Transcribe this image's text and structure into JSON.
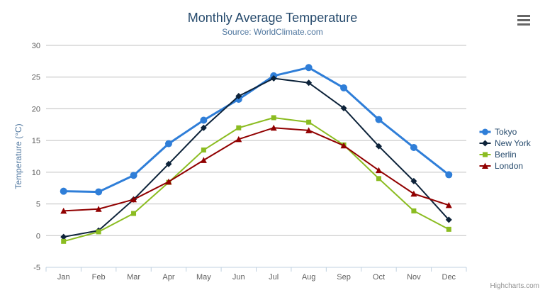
{
  "chart_data": {
    "type": "line",
    "title": "Monthly Average Temperature",
    "subtitle": "Source: WorldClimate.com",
    "categories": [
      "Jan",
      "Feb",
      "Mar",
      "Apr",
      "May",
      "Jun",
      "Jul",
      "Aug",
      "Sep",
      "Oct",
      "Nov",
      "Dec"
    ],
    "series": [
      {
        "name": "Tokyo",
        "color": "#2f7ed8",
        "marker": "circle",
        "line_width": 3,
        "marker_radius": 5,
        "values": [
          7.0,
          6.9,
          9.5,
          14.5,
          18.2,
          21.5,
          25.2,
          26.5,
          23.3,
          18.3,
          13.9,
          9.6
        ]
      },
      {
        "name": "New York",
        "color": "#0d233a",
        "marker": "diamond",
        "line_width": 2,
        "marker_radius": 4,
        "values": [
          -0.2,
          0.8,
          5.7,
          11.3,
          17.0,
          22.0,
          24.8,
          24.1,
          20.1,
          14.1,
          8.6,
          2.5
        ]
      },
      {
        "name": "Berlin",
        "color": "#8bbc21",
        "marker": "square",
        "line_width": 2,
        "marker_radius": 4,
        "values": [
          -0.9,
          0.6,
          3.5,
          8.4,
          13.5,
          17.0,
          18.6,
          17.9,
          14.3,
          9.0,
          3.9,
          1.0
        ]
      },
      {
        "name": "London",
        "color": "#910000",
        "marker": "triangle",
        "line_width": 2,
        "marker_radius": 4,
        "values": [
          3.9,
          4.2,
          5.7,
          8.5,
          11.9,
          15.2,
          17.0,
          16.6,
          14.2,
          10.3,
          6.6,
          4.8
        ]
      }
    ],
    "xlabel": "",
    "ylabel": "Temperature (°C)",
    "ylim": [
      -5,
      30
    ],
    "ytick_interval": 5,
    "grid": true,
    "legend_position": "right",
    "colors": {
      "grid_line": "#C0C0C0",
      "axis_line": "#C0D0E0",
      "tick": "#C0D0E0",
      "axis_label": "#606060",
      "axis_title": "#4d759e",
      "title": "#274b6d",
      "subtitle": "#4d759e",
      "legend_text": "#274b6d",
      "credits_text": "#909090",
      "menu_icon": "#666666"
    }
  },
  "header": {
    "menu_icon": "hamburger-menu-icon"
  },
  "credits": {
    "label": "Highcharts.com"
  }
}
